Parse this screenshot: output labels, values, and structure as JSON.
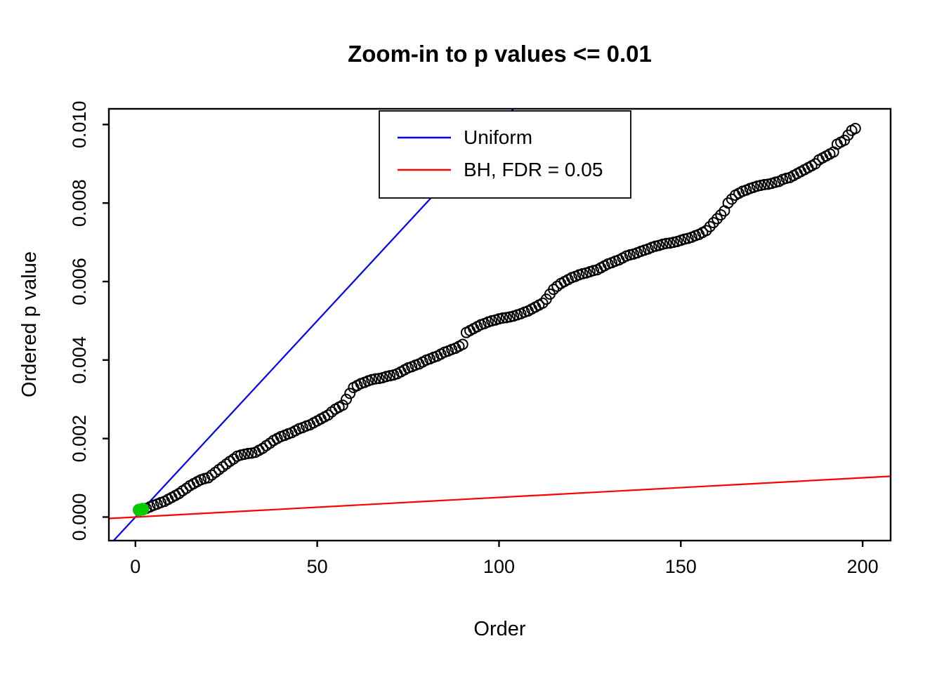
{
  "chart_data": {
    "type": "scatter",
    "title": "Zoom-in to p values <= 0.01",
    "xlabel": "Order",
    "ylabel": "Ordered p value",
    "xlim": [
      -7.3,
      207.7
    ],
    "ylim": [
      -0.0006,
      0.0104
    ],
    "x_ticks": [
      0,
      50,
      100,
      150,
      200
    ],
    "x_tick_labels": [
      "0",
      "50",
      "100",
      "150",
      "200"
    ],
    "y_ticks": [
      0.0,
      0.002,
      0.004,
      0.006,
      0.008,
      0.01
    ],
    "y_tick_labels": [
      "0.000",
      "0.002",
      "0.004",
      "0.006",
      "0.008",
      "0.010"
    ],
    "grid": false,
    "point_color": "#000000",
    "point_symbol": "open-circle",
    "n_points": 198,
    "points": {
      "x_start": 1,
      "y": [
        0.00018,
        0.0002,
        0.00022,
        0.00026,
        0.0003,
        0.00033,
        0.00037,
        0.0004,
        0.00045,
        0.0005,
        0.00055,
        0.0006,
        0.00067,
        0.00073,
        0.0008,
        0.00085,
        0.0009,
        0.00095,
        0.00098,
        0.001,
        0.00107,
        0.00114,
        0.00121,
        0.00128,
        0.00135,
        0.00142,
        0.00148,
        0.00155,
        0.00158,
        0.0016,
        0.00162,
        0.00163,
        0.00165,
        0.0017,
        0.00175,
        0.00182,
        0.00188,
        0.00195,
        0.002,
        0.00205,
        0.00208,
        0.00212,
        0.00215,
        0.0022,
        0.00225,
        0.00228,
        0.00232,
        0.00235,
        0.0024,
        0.00245,
        0.0025,
        0.00255,
        0.0026,
        0.00268,
        0.00275,
        0.0028,
        0.00285,
        0.003,
        0.00315,
        0.0033,
        0.00335,
        0.0034,
        0.00343,
        0.00347,
        0.0035,
        0.00352,
        0.00353,
        0.00355,
        0.00358,
        0.0036,
        0.00362,
        0.00365,
        0.0037,
        0.00375,
        0.0038,
        0.00383,
        0.00387,
        0.0039,
        0.00395,
        0.004,
        0.00403,
        0.00407,
        0.0041,
        0.00415,
        0.0042,
        0.00423,
        0.00427,
        0.0043,
        0.00435,
        0.0044,
        0.0047,
        0.00475,
        0.0048,
        0.00485,
        0.0049,
        0.00493,
        0.00497,
        0.005,
        0.00502,
        0.00505,
        0.00507,
        0.00508,
        0.0051,
        0.00512,
        0.00515,
        0.00518,
        0.00522,
        0.00525,
        0.0053,
        0.00535,
        0.0054,
        0.00545,
        0.00555,
        0.00568,
        0.0058,
        0.00588,
        0.00595,
        0.006,
        0.00605,
        0.0061,
        0.00613,
        0.00617,
        0.0062,
        0.00622,
        0.00625,
        0.00628,
        0.0063,
        0.00635,
        0.0064,
        0.00645,
        0.00648,
        0.00652,
        0.00655,
        0.0066,
        0.00665,
        0.00668,
        0.0067,
        0.00673,
        0.00677,
        0.0068,
        0.00683,
        0.00687,
        0.0069,
        0.00692,
        0.00695,
        0.00697,
        0.00698,
        0.007,
        0.00702,
        0.00705,
        0.00708,
        0.0071,
        0.00713,
        0.00717,
        0.0072,
        0.00725,
        0.0073,
        0.0074,
        0.0075,
        0.0076,
        0.0077,
        0.0078,
        0.008,
        0.0081,
        0.0082,
        0.00825,
        0.0083,
        0.00833,
        0.00837,
        0.0084,
        0.00843,
        0.00845,
        0.00847,
        0.00848,
        0.0085,
        0.00853,
        0.00855,
        0.0086,
        0.00863,
        0.00865,
        0.0087,
        0.00875,
        0.0088,
        0.00885,
        0.0089,
        0.00895,
        0.009,
        0.0091,
        0.00915,
        0.0092,
        0.00925,
        0.0093,
        0.0095,
        0.00955,
        0.0096,
        0.00973,
        0.00985,
        0.0099
      ]
    },
    "significant_points": [
      {
        "x": 1,
        "y": 0.00018
      },
      {
        "x": 2,
        "y": 0.0002
      }
    ],
    "significant_color": "#00CD00",
    "lines": [
      {
        "name": "Uniform",
        "color": "#0000FF",
        "slope": 0.0001,
        "intercept": 0
      },
      {
        "name": "BH, FDR = 0.05",
        "color": "#FF0000",
        "slope": 5e-06,
        "intercept": 0
      }
    ],
    "legend": {
      "position": "top-center",
      "entries": [
        {
          "label": "Uniform",
          "color": "#0000FF"
        },
        {
          "label": "BH, FDR = 0.05",
          "color": "#FF0000"
        }
      ]
    }
  }
}
